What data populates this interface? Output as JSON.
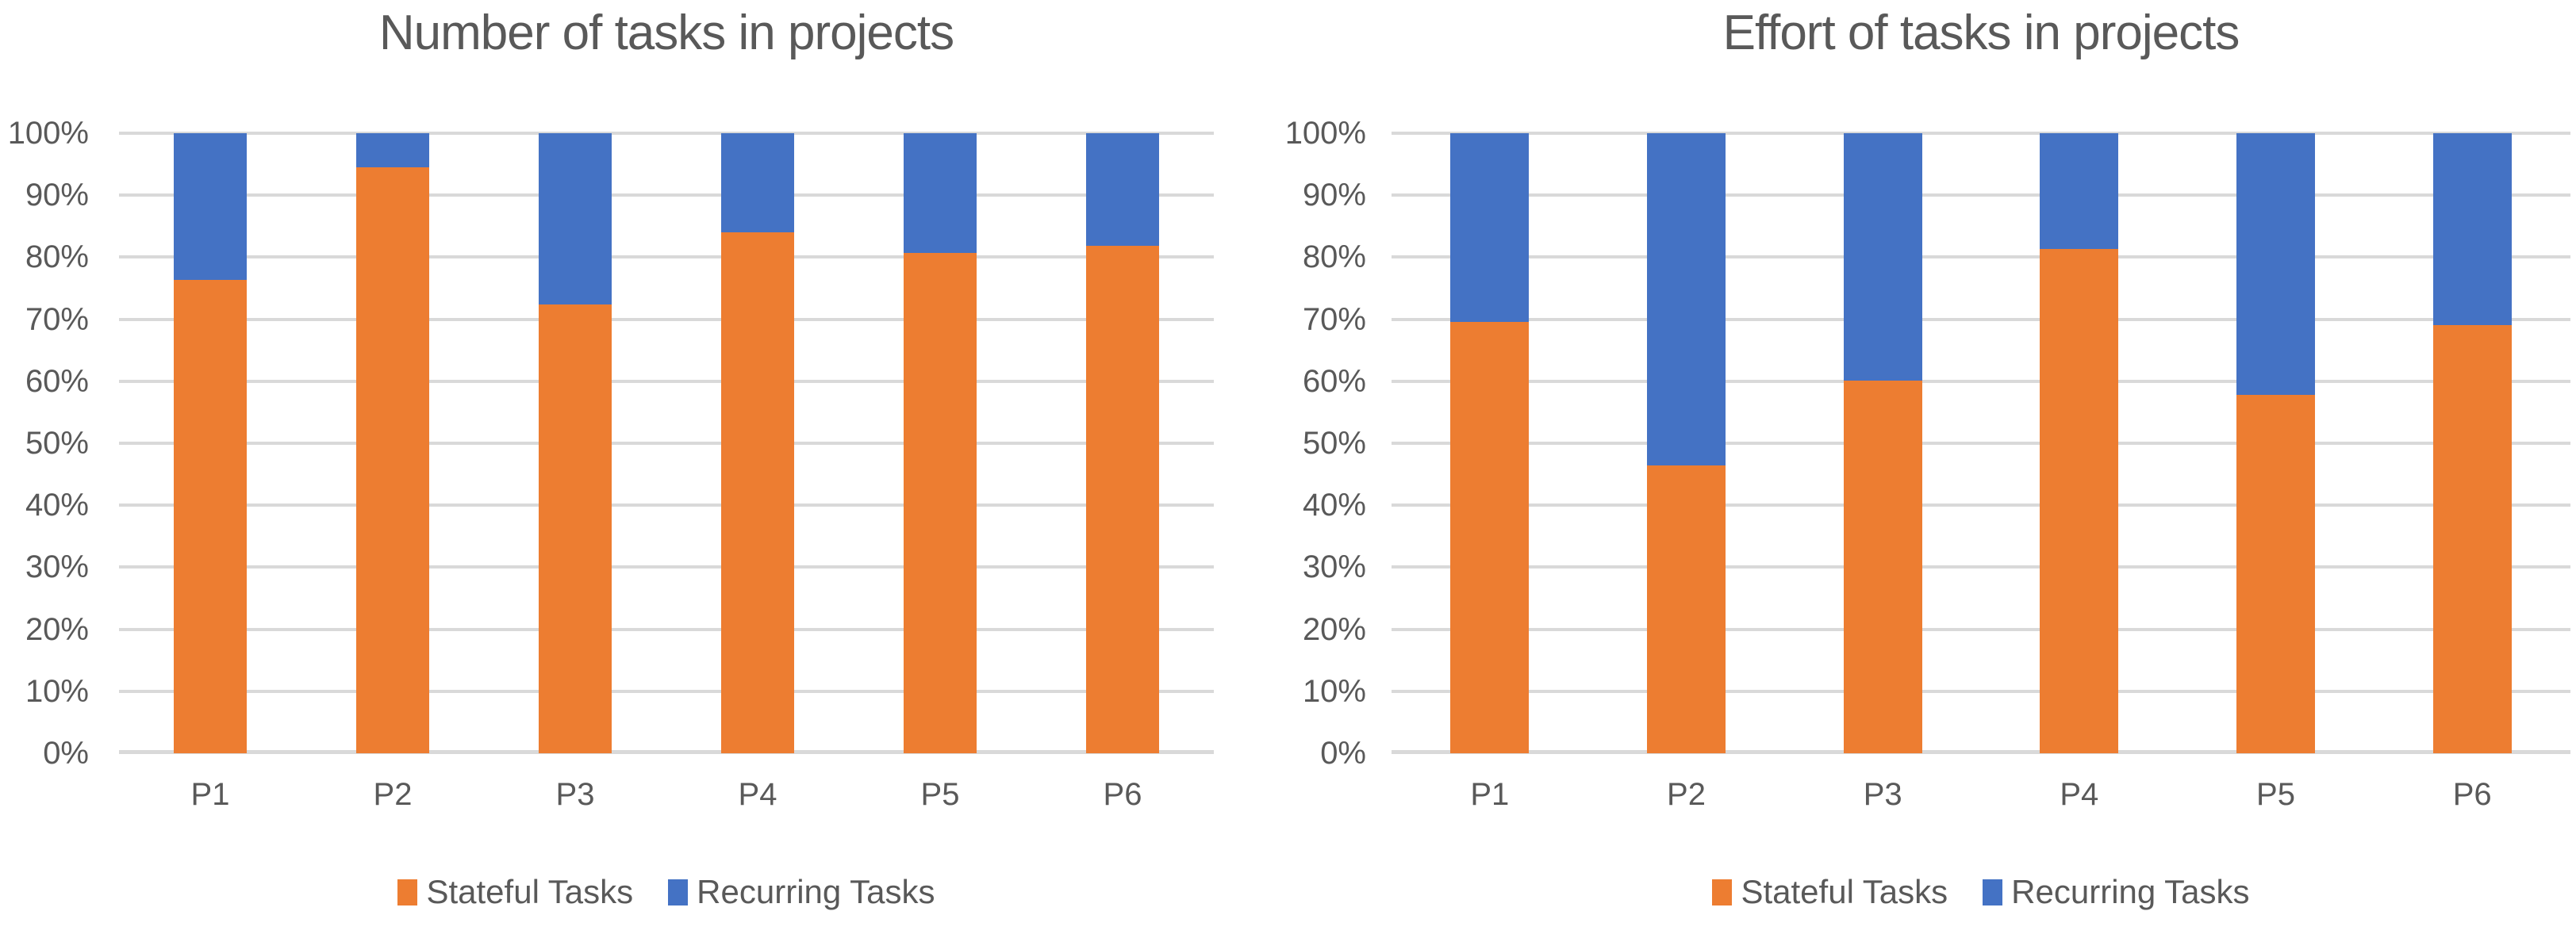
{
  "page": {
    "background": "#FFFFFF",
    "text_color": "#595959"
  },
  "colors": {
    "stateful": "#ED7D31",
    "recurring": "#4472C4",
    "gridline": "#D9D9D9",
    "axis_line": "#D9D9D9",
    "label_text": "#595959"
  },
  "chart_data": [
    {
      "type": "bar",
      "stacked": true,
      "percent_stacked": true,
      "title": "Number of tasks in projects",
      "categories": [
        "P1",
        "P2",
        "P3",
        "P4",
        "P5",
        "P6"
      ],
      "series": [
        {
          "name": "Stateful Tasks",
          "color": "#ED7D31",
          "values": [
            76.4,
            94.5,
            72.4,
            84.0,
            80.7,
            81.8
          ]
        },
        {
          "name": "Recurring Tasks",
          "color": "#4472C4",
          "values": [
            23.6,
            5.5,
            27.6,
            16.0,
            19.3,
            18.2
          ]
        }
      ],
      "xlabel": "",
      "ylabel": "",
      "y_axis": {
        "min": 0,
        "max": 100,
        "step": 10,
        "unit": "%",
        "tick_labels": [
          "100%",
          "90%",
          "80%",
          "70%",
          "60%",
          "50%",
          "40%",
          "30%",
          "20%",
          "10%",
          "0%"
        ]
      },
      "grid": true,
      "legend_position": "bottom"
    },
    {
      "type": "bar",
      "stacked": true,
      "percent_stacked": true,
      "title": "Effort of tasks in projects",
      "categories": [
        "P1",
        "P2",
        "P3",
        "P4",
        "P5",
        "P6"
      ],
      "series": [
        {
          "name": "Stateful Tasks",
          "color": "#ED7D31",
          "values": [
            69.6,
            46.4,
            60.1,
            81.3,
            57.8,
            69.1
          ]
        },
        {
          "name": "Recurring Tasks",
          "color": "#4472C4",
          "values": [
            30.4,
            53.6,
            39.9,
            18.7,
            42.2,
            30.9
          ]
        }
      ],
      "xlabel": "",
      "ylabel": "",
      "y_axis": {
        "min": 0,
        "max": 100,
        "step": 10,
        "unit": "%",
        "tick_labels": [
          "100%",
          "90%",
          "80%",
          "70%",
          "60%",
          "50%",
          "40%",
          "30%",
          "20%",
          "10%",
          "0%"
        ]
      },
      "grid": true,
      "legend_position": "bottom"
    }
  ]
}
